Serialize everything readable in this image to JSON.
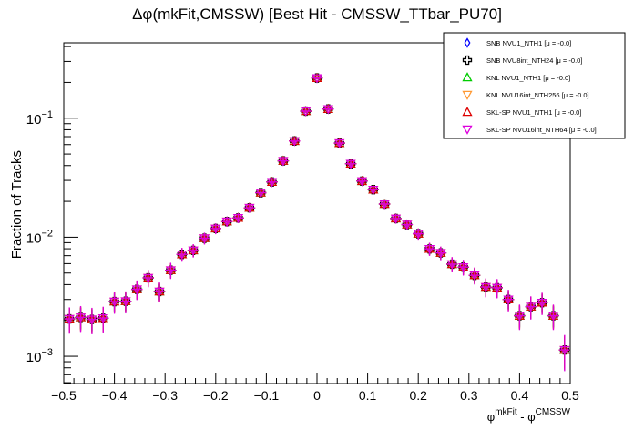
{
  "chart_data": {
    "type": "scatter",
    "title": "Δφ(mkFit,CMSSW) [Best Hit - CMSSW_TTbar_PU70]",
    "xlabel": {
      "base1": "φ",
      "sup1": "mkFit",
      "sep": " - ",
      "base2": "φ",
      "sup2": "CMSSW"
    },
    "ylabel": "Fraction of Tracks",
    "xlim": [
      -0.5,
      0.5
    ],
    "ylim": [
      0.00059,
      0.43
    ],
    "yscale": "log",
    "grid": false,
    "legend_position": "top-right",
    "x_ticks": [
      "−0.5",
      "−0.4",
      "−0.3",
      "−0.2",
      "−0.1",
      "0",
      "0.1",
      "0.2",
      "0.3",
      "0.4",
      "0.5"
    ],
    "y_ticks": [
      {
        "base": "10",
        "exp": "−1",
        "value": 0.1
      },
      {
        "base": "10",
        "exp": "−2",
        "value": 0.01
      },
      {
        "base": "10",
        "exp": "−3",
        "value": 0.001
      }
    ],
    "x": [
      -0.4889,
      -0.4667,
      -0.4444,
      -0.4222,
      -0.4,
      -0.3778,
      -0.3556,
      -0.3333,
      -0.3111,
      -0.2889,
      -0.2667,
      -0.2444,
      -0.2222,
      -0.2,
      -0.1778,
      -0.1556,
      -0.1333,
      -0.1111,
      -0.0889,
      -0.0667,
      -0.0444,
      -0.0222,
      0,
      0.0222,
      0.0444,
      0.0667,
      0.0889,
      0.1111,
      0.1333,
      0.1556,
      0.1778,
      0.2,
      0.2222,
      0.2444,
      0.2667,
      0.2889,
      0.3111,
      0.3333,
      0.3556,
      0.3778,
      0.4,
      0.4222,
      0.4444,
      0.4667,
      0.4889
    ],
    "series": [
      {
        "name": "SNB NVU1_NTH1 [μ = -0.0]",
        "color": "#0000ff",
        "marker": "open-diamond",
        "values": [
          0.00206,
          0.00212,
          0.00204,
          0.00209,
          0.00288,
          0.0029,
          0.00365,
          0.00456,
          0.0035,
          0.00528,
          0.00718,
          0.00775,
          0.0098,
          0.01183,
          0.01355,
          0.01452,
          0.01766,
          0.02366,
          0.0291,
          0.0438,
          0.0643,
          0.1146,
          0.2174,
          0.1194,
          0.0618,
          0.0414,
          0.0296,
          0.0251,
          0.019,
          0.01435,
          0.01277,
          0.0107,
          0.00798,
          0.00738,
          0.00594,
          0.00561,
          0.00479,
          0.00382,
          0.00376,
          0.003,
          0.00219,
          0.00261,
          0.00282,
          0.00219,
          0.00113
        ]
      },
      {
        "name": "SNB NVU8int_NTH24 [μ = -0.0]",
        "color": "#000000",
        "marker": "open-cross",
        "values": [
          0.00206,
          0.00212,
          0.00204,
          0.00209,
          0.00288,
          0.0029,
          0.00365,
          0.00456,
          0.0035,
          0.00528,
          0.00718,
          0.00775,
          0.0098,
          0.01183,
          0.01355,
          0.01452,
          0.01766,
          0.02366,
          0.0291,
          0.0438,
          0.0643,
          0.1146,
          0.2174,
          0.1194,
          0.0618,
          0.0414,
          0.0296,
          0.0251,
          0.019,
          0.01435,
          0.01277,
          0.0107,
          0.00798,
          0.00738,
          0.00594,
          0.00561,
          0.00479,
          0.00382,
          0.00376,
          0.003,
          0.00219,
          0.00261,
          0.00282,
          0.00219,
          0.00113
        ]
      },
      {
        "name": "KNL NVU1_NTH1 [μ = -0.0]",
        "color": "#00cc00",
        "marker": "open-triangle-up",
        "values": [
          0.00206,
          0.00212,
          0.00204,
          0.00209,
          0.00288,
          0.0029,
          0.00365,
          0.00456,
          0.0035,
          0.00528,
          0.00718,
          0.00775,
          0.0098,
          0.01183,
          0.01355,
          0.01452,
          0.01766,
          0.02366,
          0.0291,
          0.0438,
          0.0643,
          0.1146,
          0.2174,
          0.1194,
          0.0618,
          0.0414,
          0.0296,
          0.0251,
          0.019,
          0.01435,
          0.01277,
          0.0107,
          0.00798,
          0.00738,
          0.00594,
          0.00561,
          0.00479,
          0.00382,
          0.00376,
          0.003,
          0.00219,
          0.00261,
          0.00282,
          0.00219,
          0.00113
        ]
      },
      {
        "name": "KNL NVU16int_NTH256 [μ = -0.0]",
        "color": "#ff9933",
        "marker": "open-triangle-down",
        "values": [
          0.00206,
          0.00212,
          0.00204,
          0.00209,
          0.00288,
          0.0029,
          0.00365,
          0.00456,
          0.0035,
          0.00528,
          0.00718,
          0.00775,
          0.0098,
          0.01183,
          0.01355,
          0.01452,
          0.01766,
          0.02366,
          0.0291,
          0.0438,
          0.0643,
          0.1146,
          0.2174,
          0.1194,
          0.0618,
          0.0414,
          0.0296,
          0.0251,
          0.019,
          0.01435,
          0.01277,
          0.0107,
          0.00798,
          0.00738,
          0.00594,
          0.00561,
          0.00479,
          0.00382,
          0.00376,
          0.003,
          0.00219,
          0.00261,
          0.00282,
          0.00219,
          0.00113
        ]
      },
      {
        "name": "SKL-SP NVU1_NTH1 [μ = -0.0]",
        "color": "#dd0000",
        "marker": "open-triangle-up",
        "values": [
          0.00206,
          0.00212,
          0.00204,
          0.00209,
          0.00288,
          0.0029,
          0.00365,
          0.00456,
          0.0035,
          0.00528,
          0.00718,
          0.00775,
          0.0098,
          0.01183,
          0.01355,
          0.01452,
          0.01766,
          0.02366,
          0.0291,
          0.0438,
          0.0643,
          0.1146,
          0.2174,
          0.1194,
          0.0618,
          0.0414,
          0.0296,
          0.0251,
          0.019,
          0.01435,
          0.01277,
          0.0107,
          0.00798,
          0.00738,
          0.00594,
          0.00561,
          0.00479,
          0.00382,
          0.00376,
          0.003,
          0.00219,
          0.00261,
          0.00282,
          0.00219,
          0.00113
        ]
      },
      {
        "name": "SKL-SP NVU16int_NTH64 [μ = -0.0]",
        "color": "#dd00dd",
        "marker": "open-triangle-down",
        "values": [
          0.00206,
          0.00212,
          0.00204,
          0.00209,
          0.00288,
          0.0029,
          0.00365,
          0.00456,
          0.0035,
          0.00528,
          0.00718,
          0.00775,
          0.0098,
          0.01183,
          0.01355,
          0.01452,
          0.01766,
          0.02366,
          0.0291,
          0.0438,
          0.0643,
          0.1146,
          0.2174,
          0.1194,
          0.0618,
          0.0414,
          0.0296,
          0.0251,
          0.019,
          0.01435,
          0.01277,
          0.0107,
          0.00798,
          0.00738,
          0.00594,
          0.00561,
          0.00479,
          0.00382,
          0.00376,
          0.003,
          0.00219,
          0.00261,
          0.00282,
          0.00219,
          0.00113
        ]
      }
    ]
  }
}
